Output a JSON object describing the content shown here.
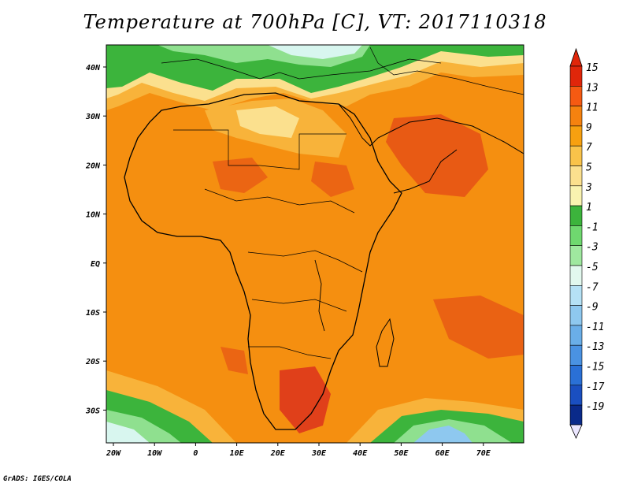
{
  "title": "Temperature at 700hPa [C], VT: 2017110318",
  "credit": "GrADS: IGES/COLA",
  "lon_ticks": [
    "20W",
    "10W",
    "0",
    "10E",
    "20E",
    "30E",
    "40E",
    "50E",
    "60E",
    "70E"
  ],
  "lat_ticks": [
    "40N",
    "30N",
    "20N",
    "10N",
    "EQ",
    "10S",
    "20S",
    "30S"
  ],
  "colorbar": {
    "levels": [
      "15",
      "13",
      "11",
      "9",
      "7",
      "5",
      "3",
      "1",
      "-1",
      "-3",
      "-5",
      "-7",
      "-9",
      "-11",
      "-13",
      "-15",
      "-17",
      "-19"
    ],
    "colors": [
      "#e0260a",
      "#f55a12",
      "#f5820f",
      "#f7a010",
      "#f9c34a",
      "#fbe08e",
      "#f9f3b0",
      "#3cb43c",
      "#6fd86f",
      "#9fe89f",
      "#e2f8ee",
      "#b5e1f5",
      "#8ec8ef",
      "#6aaee8",
      "#4a92e2",
      "#2a70d6",
      "#1a4fc0",
      "#0a2a8a"
    ]
  },
  "palette": {
    "hot": "#e85a14",
    "warm": "#f58f10",
    "mild": "#f8b33a",
    "cool": "#fbe08e",
    "green": "#3cb43c",
    "lightgreen": "#8fe08f",
    "cyan": "#d8f6ef",
    "blue": "#8ec8ef"
  }
}
